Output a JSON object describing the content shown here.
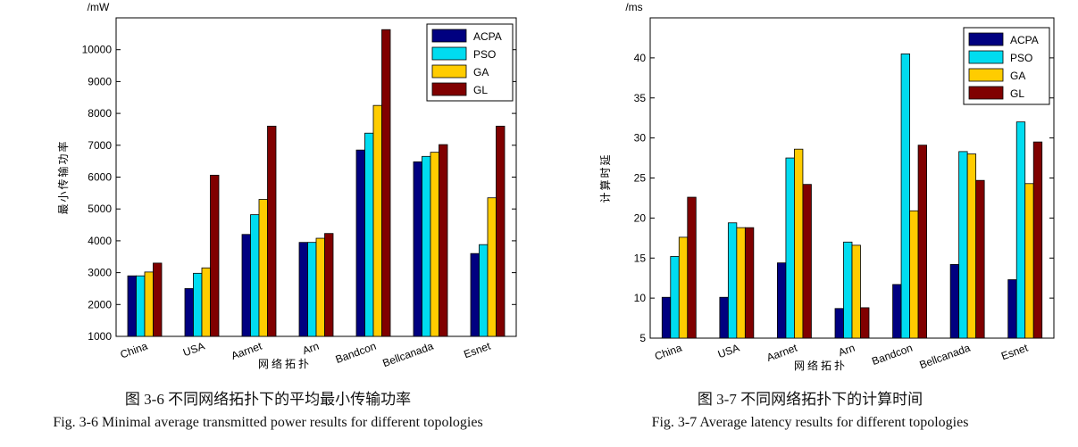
{
  "colors": {
    "ACPA": "#000080",
    "PSO": "#00dcf0",
    "GA": "#ffcc00",
    "GL": "#800000"
  },
  "chart_data": [
    {
      "type": "bar",
      "categories": [
        "China",
        "USA",
        "Aarnet",
        "Arn",
        "Bandcon",
        "Bellcanada",
        "Esnet"
      ],
      "series": [
        {
          "name": "ACPA",
          "values": [
            2900,
            2500,
            4200,
            3950,
            6850,
            6480,
            3600
          ]
        },
        {
          "name": "PSO",
          "values": [
            2900,
            2980,
            4820,
            3950,
            7380,
            6650,
            3880
          ]
        },
        {
          "name": "GA",
          "values": [
            3020,
            3150,
            5300,
            4080,
            8250,
            6780,
            5350
          ]
        },
        {
          "name": "GL",
          "values": [
            3300,
            6060,
            7600,
            4230,
            10630,
            7020,
            7600
          ]
        }
      ],
      "title": "",
      "unit": "/mW",
      "xlabel": "网络拓扑",
      "ylabel": "最小传输功率",
      "ylim": [
        1000,
        11000
      ],
      "yticks": [
        1000,
        2000,
        3000,
        4000,
        5000,
        6000,
        7000,
        8000,
        9000,
        10000
      ],
      "legend_position": "top-right",
      "grid": false
    },
    {
      "type": "bar",
      "categories": [
        "China",
        "USA",
        "Aarnet",
        "Arn",
        "Bandcon",
        "Bellcanada",
        "Esnet"
      ],
      "series": [
        {
          "name": "ACPA",
          "values": [
            10.1,
            10.1,
            14.4,
            8.7,
            11.7,
            14.2,
            12.3
          ]
        },
        {
          "name": "PSO",
          "values": [
            15.2,
            19.4,
            27.5,
            17.0,
            40.5,
            28.3,
            32.0
          ]
        },
        {
          "name": "GA",
          "values": [
            17.6,
            18.8,
            28.6,
            16.6,
            20.9,
            28.0,
            24.3
          ]
        },
        {
          "name": "GL",
          "values": [
            22.6,
            18.8,
            24.2,
            8.8,
            29.1,
            24.7,
            29.5
          ]
        }
      ],
      "title": "",
      "unit": "/ms",
      "xlabel": "网络拓扑",
      "ylabel": "计算时延",
      "ylim": [
        5,
        45
      ],
      "yticks": [
        5,
        10,
        15,
        20,
        25,
        30,
        35,
        40
      ],
      "legend_position": "top-right",
      "grid": false
    }
  ],
  "captions": {
    "left_cn": "图 3-6  不同网络拓扑下的平均最小传输功率",
    "left_en": "Fig. 3-6 Minimal average transmitted power results for different topologies",
    "right_cn": "图 3-7  不同网络拓扑下的计算时间",
    "right_en": "Fig. 3-7 Average latency results for different topologies"
  }
}
